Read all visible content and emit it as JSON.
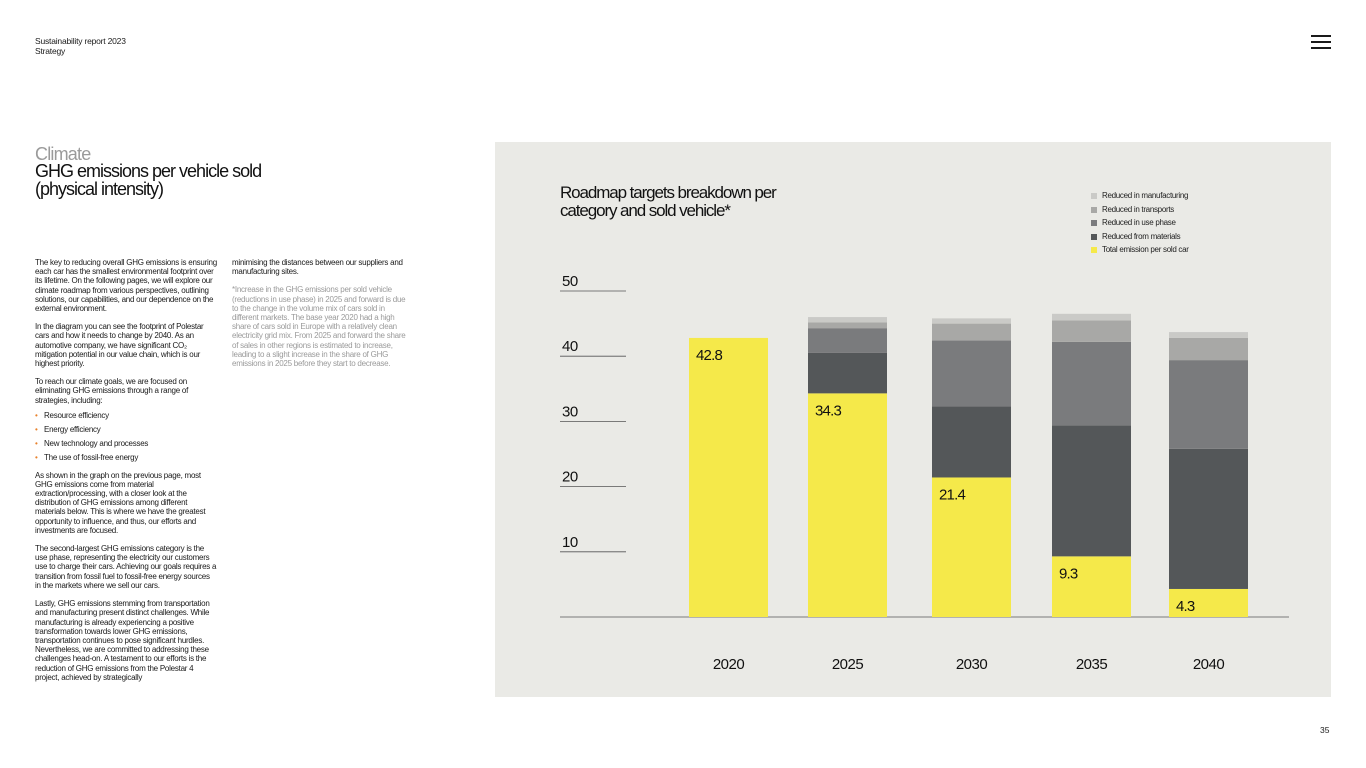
{
  "header": {
    "report": "Sustainability report 2023",
    "section": "Strategy"
  },
  "title": {
    "category": "Climate",
    "heading": "GHG emissions per vehicle sold (physical intensity)"
  },
  "column1": {
    "p1": "The key to reducing overall GHG emissions is ensuring each car has the smallest environmental footprint over its lifetime. On the following pages, we will explore our climate roadmap from various perspectives, outlining solutions, our capabilities, and our dependence on the external environment.",
    "p2": "In the diagram you can see the footprint of Polestar cars and how it needs to change by 2040. As an automotive company, we have significant CO₂ mitigation potential in our value chain, which is our highest priority.",
    "p3": "To reach our climate goals, we are focused on eliminating GHG emissions through a range of strategies, including:",
    "bullets": [
      "Resource efficiency",
      "Energy efficiency",
      "New technology and processes",
      "The use of fossil-free energy"
    ],
    "p4": "As shown in the graph on the previous page, most GHG emissions come from material extraction/processing, with a closer look at the distribution of GHG emissions among different materials below. This is where we have the greatest opportunity to influence, and thus, our efforts and investments are focused.",
    "p5": "The second-largest GHG emissions category is the use phase, representing the electricity our customers use to charge their cars. Achieving our goals requires a transition from fossil fuel to fossil-free energy sources in the markets where we sell our cars.",
    "p6": "Lastly, GHG emissions stemming from transportation and manufacturing present distinct challenges. While manufacturing is already experiencing a positive transformation towards lower GHG emissions, transportation continues to pose significant hurdles. Nevertheless, we are committed to addressing these challenges head-on. A testament to our efforts is the reduction of GHG emissions from the Polestar 4 project, achieved by strategically"
  },
  "column2": {
    "p1": "minimising the distances between our suppliers and manufacturing sites.",
    "note": "*Increase in the GHG emissions per sold vehicle (reductions in use phase) in 2025 and forward is due to the change in the volume mix of cars sold in different markets. The base year 2020 had a high share of cars sold in Europe with a relatively clean electricity grid mix. From 2025 and forward the share of sales in other regions is estimated to increase, leading to a slight increase in the share of GHG emissions in 2025 before they start to decrease."
  },
  "page_number": "35",
  "colors": {
    "total": "#f5e94a",
    "materials": "#545759",
    "use_phase": "#7a7b7d",
    "transports": "#a8a8a6",
    "manufacturing": "#cacac7",
    "background": "#eaeae6",
    "bullet": "#e8812a"
  },
  "chart_data": {
    "type": "bar",
    "title": "Roadmap targets breakdown per category and sold vehicle*",
    "categories": [
      "2020",
      "2025",
      "2030",
      "2035",
      "2040"
    ],
    "yticks": [
      "10",
      "20",
      "30",
      "40",
      "50"
    ],
    "ylim": [
      0,
      50
    ],
    "legend_position": "top-right",
    "series": [
      {
        "name": "Total emission per sold car",
        "key": "total",
        "values": [
          42.8,
          34.3,
          21.4,
          9.3,
          4.3
        ]
      },
      {
        "name": "Reduced from materials",
        "key": "materials",
        "values": [
          0,
          6.2,
          10.9,
          20.1,
          21.5
        ]
      },
      {
        "name": "Reduced in use phase",
        "key": "use_phase",
        "values": [
          0,
          3.8,
          10.1,
          12.8,
          13.6
        ]
      },
      {
        "name": "Reduced in transports",
        "key": "transports",
        "values": [
          0,
          0.9,
          2.6,
          3.3,
          3.4
        ]
      },
      {
        "name": "Reduced in manufacturing",
        "key": "manufacturing",
        "values": [
          0,
          0.8,
          0.8,
          1.0,
          0.9
        ]
      }
    ],
    "data_labels": [
      "42.8",
      "34.3",
      "21.4",
      "9.3",
      "4.3"
    ]
  }
}
